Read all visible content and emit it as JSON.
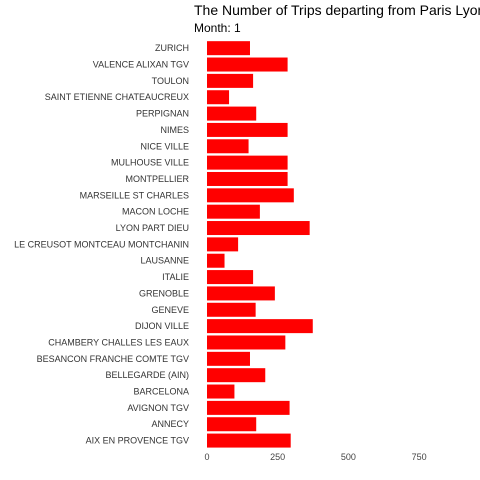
{
  "chart_data": {
    "type": "bar",
    "orientation": "horizontal",
    "title": "The Number of Trips departing from Paris Lyon L",
    "subtitle": "Month: 1",
    "xlabel": "",
    "ylabel": "",
    "xlim": [
      0,
      850
    ],
    "xticks": [
      "0",
      "250",
      "500",
      "750"
    ],
    "grid": false,
    "legend": "none",
    "bar_color": "#ff0000",
    "categories": [
      "ZURICH",
      "VALENCE ALIXAN TGV",
      "TOULON",
      "SAINT ETIENNE CHATEAUCREUX",
      "PERPIGNAN",
      "NIMES",
      "NICE VILLE",
      "MULHOUSE VILLE",
      "MONTPELLIER",
      "MARSEILLE ST CHARLES",
      "MACON LOCHE",
      "LYON PART DIEU",
      "LE CREUSOT MONTCEAU MONTCHANIN",
      "LAUSANNE",
      "ITALIE",
      "GRENOBLE",
      "GENEVE",
      "DIJON VILLE",
      "CHAMBERY CHALLES LES EAUX",
      "BESANCON FRANCHE COMTE TGV",
      "BELLEGARDE (AIN)",
      "BARCELONA",
      "AVIGNON TGV",
      "ANNECY",
      "AIX EN PROVENCE TGV"
    ],
    "values": [
      152,
      285,
      163,
      78,
      174,
      285,
      147,
      285,
      285,
      307,
      187,
      363,
      110,
      62,
      163,
      240,
      172,
      374,
      277,
      152,
      206,
      97,
      292,
      174,
      296
    ]
  }
}
